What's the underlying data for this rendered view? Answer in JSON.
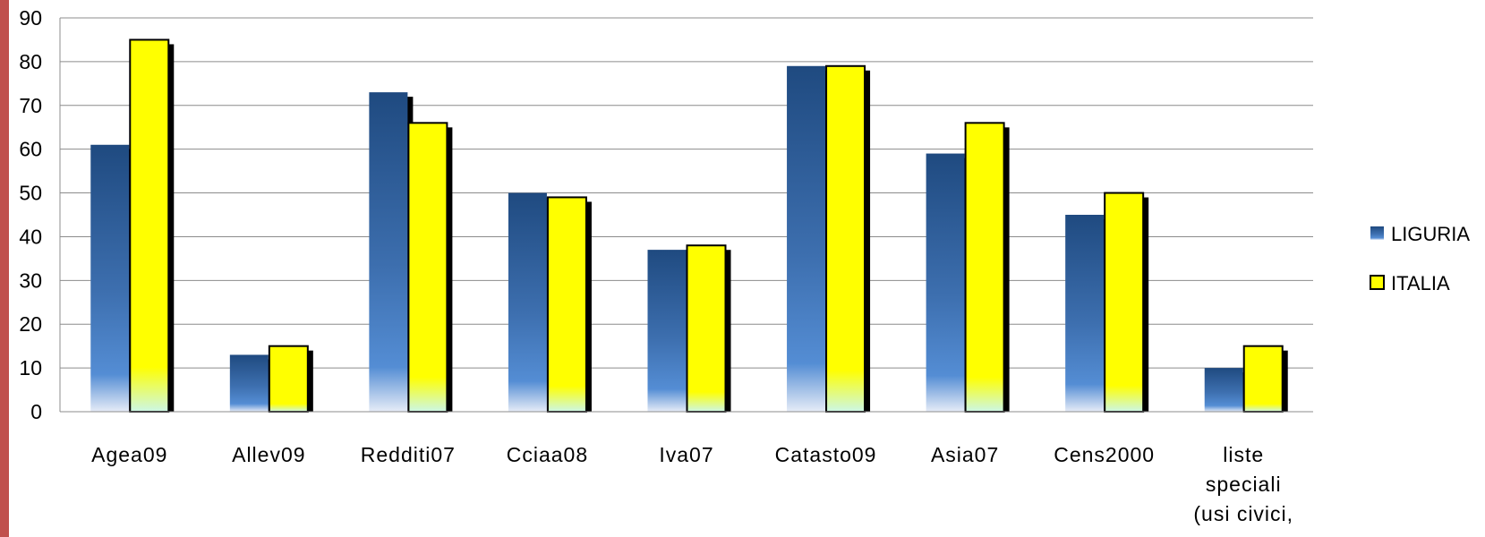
{
  "chart_data": {
    "type": "bar",
    "categories": [
      "Agea09",
      "Allev09",
      "Redditi07",
      "Cciaa08",
      "Iva07",
      "Catasto09",
      "Asia07",
      "Cens2000",
      "liste speciali (usi civici,"
    ],
    "category_lines": [
      [
        "Agea09"
      ],
      [
        "Allev09"
      ],
      [
        "Redditi07"
      ],
      [
        "Cciaa08"
      ],
      [
        "Iva07"
      ],
      [
        "Catasto09"
      ],
      [
        "Asia07"
      ],
      [
        "Cens2000"
      ],
      [
        "liste",
        "speciali",
        "(usi civici,"
      ]
    ],
    "series": [
      {
        "name": "LIGURIA",
        "values": [
          61,
          13,
          73,
          50,
          37,
          79,
          59,
          45,
          10
        ],
        "color": "#4f81bd"
      },
      {
        "name": "ITALIA",
        "values": [
          85,
          15,
          66,
          49,
          38,
          79,
          66,
          50,
          15
        ],
        "color": "#ffff00"
      }
    ],
    "yticks": [
      0,
      10,
      20,
      30,
      40,
      50,
      60,
      70,
      80,
      90
    ],
    "ylim": [
      0,
      90
    ],
    "grid": true,
    "legend": "right",
    "title": "",
    "xlabel": "",
    "ylabel": ""
  }
}
